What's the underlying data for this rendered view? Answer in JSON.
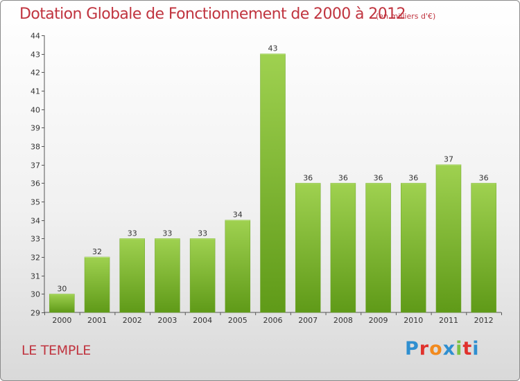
{
  "header": {
    "title": "Dotation Globale de Fonctionnement de 2000 à 2012",
    "unit": "(en milliers d'€)"
  },
  "footer": {
    "commune": "LE TEMPLE",
    "logo_letters": [
      "P",
      "r",
      "o",
      "x",
      "i",
      "t",
      "i"
    ],
    "logo_colors": [
      "#2f8fd0",
      "#e0322d",
      "#f28a1e",
      "#2f8fd0",
      "#7cc242",
      "#e0322d",
      "#2f8fd0"
    ]
  },
  "chart_data": {
    "type": "bar",
    "categories": [
      "2000",
      "2001",
      "2002",
      "2003",
      "2004",
      "2005",
      "2006",
      "2007",
      "2008",
      "2009",
      "2010",
      "2011",
      "2012"
    ],
    "values": [
      30,
      32,
      33,
      33,
      33,
      34,
      43,
      36,
      36,
      36,
      36,
      37,
      36
    ],
    "title": "Dotation Globale de Fonctionnement de 2000 à 2012",
    "ylim": [
      29,
      44
    ],
    "yticks": [
      29,
      30,
      31,
      32,
      33,
      34,
      35,
      36,
      37,
      38,
      39,
      40,
      41,
      42,
      43,
      44
    ],
    "grid": false,
    "bar_color": "#8cc63f"
  }
}
